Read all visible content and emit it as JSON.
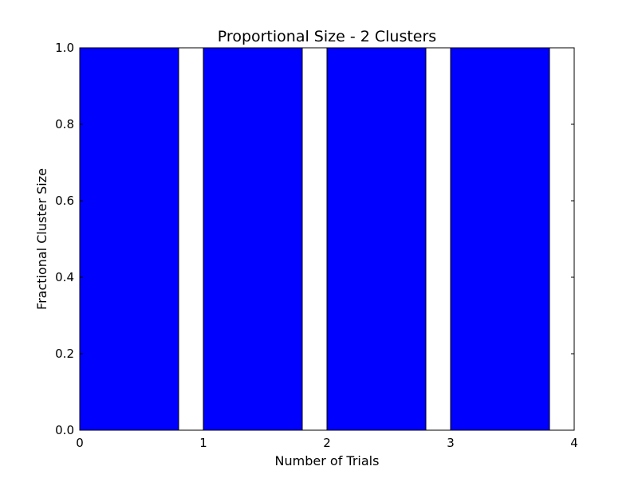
{
  "chart_data": {
    "type": "bar",
    "title": "Proportional Size - 2 Clusters",
    "xlabel": "Number of Trials",
    "ylabel": "Fractional Cluster Size",
    "x": [
      0,
      1,
      2,
      3
    ],
    "bar_width": 0.8,
    "values": [
      1.0,
      1.0,
      1.0,
      1.0
    ],
    "xlim": [
      0,
      4
    ],
    "ylim": [
      0.0,
      1.0
    ],
    "xticks": [
      0,
      1,
      2,
      3,
      4
    ],
    "xtick_labels": [
      "0",
      "1",
      "2",
      "3",
      "4"
    ],
    "yticks": [
      0.0,
      0.2,
      0.4,
      0.6,
      0.8,
      1.0
    ],
    "ytick_labels": [
      "0.0",
      "0.2",
      "0.4",
      "0.6",
      "0.8",
      "1.0"
    ],
    "grid": false,
    "bar_color": "#0000ff",
    "edge_color": "#000000"
  }
}
